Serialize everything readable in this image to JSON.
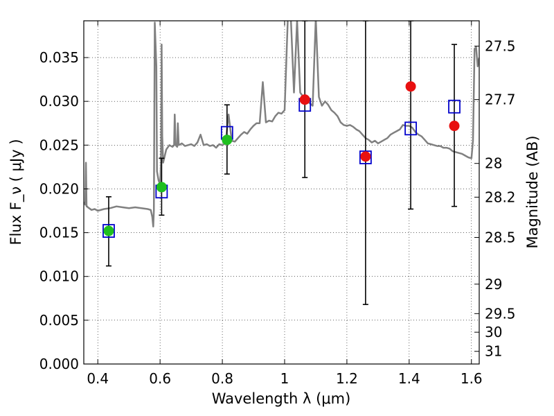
{
  "chart_data": {
    "type": "scatter",
    "xlabel": "Wavelength  λ (μm)",
    "ylabel": "Flux  F_ν  ( μJy )",
    "ylabel_right": "Magnitude (AB)",
    "xlim": [
      0.355,
      1.625
    ],
    "ylim": [
      0.0,
      0.0392
    ],
    "x_ticks": [
      0.4,
      0.6,
      0.8,
      1.0,
      1.2,
      1.4,
      1.6
    ],
    "x_tick_labels": [
      "0.4",
      "0.6",
      "0.8",
      "1",
      "1.2",
      "1.4",
      "1.6"
    ],
    "y_ticks": [
      0.0,
      0.005,
      0.01,
      0.015,
      0.02,
      0.025,
      0.03,
      0.035
    ],
    "y_tick_labels": [
      "0.000",
      "0.005",
      "0.010",
      "0.015",
      "0.020",
      "0.025",
      "0.030",
      "0.035"
    ],
    "right_ticks": [
      {
        "mag": 27.5,
        "label": "27.5"
      },
      {
        "mag": 27.7,
        "label": "27.7"
      },
      {
        "mag": 28.0,
        "label": "28"
      },
      {
        "mag": 28.2,
        "label": "28.2"
      },
      {
        "mag": 28.5,
        "label": "28.5"
      },
      {
        "mag": 29.0,
        "label": "29"
      },
      {
        "mag": 29.5,
        "label": "29.5"
      },
      {
        "mag": 30.0,
        "label": "30"
      },
      {
        "mag": 31.0,
        "label": "31"
      }
    ],
    "grid": true,
    "colors": {
      "model": "#808080",
      "model_photometry": "#0000cc",
      "detected": "#1fbf1f",
      "undetected": "#e81010",
      "errorbar": "#000000"
    },
    "series": [
      {
        "type": "line",
        "x": [
          0.355,
          0.36,
          0.362,
          0.364,
          0.366,
          0.368,
          0.372,
          0.38,
          0.39,
          0.4,
          0.42,
          0.44,
          0.46,
          0.48,
          0.5,
          0.52,
          0.54,
          0.56,
          0.57,
          0.575,
          0.578,
          0.58,
          0.583,
          0.585,
          0.588,
          0.59,
          0.595,
          0.6,
          0.603,
          0.605,
          0.607,
          0.61,
          0.62,
          0.63,
          0.64,
          0.645,
          0.647,
          0.65,
          0.655,
          0.657,
          0.66,
          0.67,
          0.68,
          0.69,
          0.7,
          0.71,
          0.72,
          0.73,
          0.74,
          0.75,
          0.76,
          0.77,
          0.78,
          0.79,
          0.8,
          0.81,
          0.82,
          0.83,
          0.84,
          0.85,
          0.86,
          0.87,
          0.88,
          0.89,
          0.9,
          0.91,
          0.92,
          0.93,
          0.94,
          0.95,
          0.96,
          0.97,
          0.98,
          0.99,
          1.0,
          1.01,
          1.02,
          1.03,
          1.04,
          1.05,
          1.06,
          1.07,
          1.08,
          1.09,
          1.1,
          1.11,
          1.12,
          1.13,
          1.14,
          1.15,
          1.16,
          1.17,
          1.18,
          1.19,
          1.2,
          1.21,
          1.22,
          1.23,
          1.24,
          1.25,
          1.26,
          1.27,
          1.28,
          1.29,
          1.3,
          1.31,
          1.32,
          1.33,
          1.34,
          1.35,
          1.36,
          1.37,
          1.38,
          1.39,
          1.4,
          1.41,
          1.42,
          1.43,
          1.44,
          1.45,
          1.46,
          1.47,
          1.48,
          1.49,
          1.5,
          1.51,
          1.52,
          1.53,
          1.54,
          1.55,
          1.56,
          1.57,
          1.58,
          1.59,
          1.6,
          1.605,
          1.61,
          1.615,
          1.62,
          1.625
        ],
        "y": [
          0.0185,
          0.0182,
          0.023,
          0.018,
          0.018,
          0.0179,
          0.0178,
          0.0176,
          0.0177,
          0.0175,
          0.0177,
          0.0178,
          0.018,
          0.0179,
          0.0178,
          0.0179,
          0.0178,
          0.0177,
          0.0176,
          0.0168,
          0.0157,
          0.0175,
          0.039,
          0.037,
          0.034,
          0.022,
          0.021,
          0.0205,
          0.023,
          0.0365,
          0.026,
          0.023,
          0.0245,
          0.025,
          0.0248,
          0.025,
          0.0285,
          0.025,
          0.0248,
          0.0275,
          0.025,
          0.0252,
          0.0249,
          0.025,
          0.0251,
          0.0249,
          0.0253,
          0.0262,
          0.025,
          0.0251,
          0.0249,
          0.025,
          0.0247,
          0.0251,
          0.025,
          0.0252,
          0.0285,
          0.0255,
          0.0254,
          0.0258,
          0.0262,
          0.0265,
          0.0263,
          0.0268,
          0.0272,
          0.0275,
          0.0275,
          0.0322,
          0.0276,
          0.0278,
          0.0277,
          0.0283,
          0.0287,
          0.0286,
          0.029,
          0.0392,
          0.0395,
          0.031,
          0.0392,
          0.031,
          0.0305,
          0.0302,
          0.0298,
          0.0295,
          0.0395,
          0.0305,
          0.0295,
          0.03,
          0.0296,
          0.029,
          0.0287,
          0.0283,
          0.0276,
          0.0273,
          0.0272,
          0.0273,
          0.0271,
          0.0268,
          0.0266,
          0.0262,
          0.0258,
          0.0256,
          0.0253,
          0.0255,
          0.0252,
          0.0254,
          0.0256,
          0.0258,
          0.0262,
          0.0264,
          0.0266,
          0.0268,
          0.0273,
          0.0272,
          0.0272,
          0.027,
          0.0265,
          0.0262,
          0.026,
          0.0256,
          0.0252,
          0.0251,
          0.025,
          0.0249,
          0.0249,
          0.0247,
          0.0247,
          0.0246,
          0.0243,
          0.0242,
          0.0241,
          0.024,
          0.0238,
          0.0236,
          0.0235,
          0.0255,
          0.036,
          0.0362,
          0.034,
          0.035
        ]
      },
      {
        "type": "scatter",
        "marker": "open-square",
        "x": [
          0.435,
          0.605,
          0.815,
          1.065,
          1.26,
          1.405,
          1.545
        ],
        "y": [
          0.0152,
          0.0197,
          0.0264,
          0.0296,
          0.0236,
          0.0269,
          0.0294
        ]
      },
      {
        "type": "scatter",
        "marker": "filled-circle",
        "x": [
          0.435,
          0.605,
          0.815
        ],
        "y": [
          0.0152,
          0.0202,
          0.0256
        ],
        "yerr_low": [
          0.0112,
          0.017,
          0.0217
        ],
        "yerr_high": [
          0.0191,
          0.0235,
          0.0296
        ]
      },
      {
        "type": "scatter",
        "marker": "filled-circle",
        "x": [
          1.065,
          1.26,
          1.405,
          1.545
        ],
        "y": [
          0.0302,
          0.0237,
          0.0317,
          0.0272
        ],
        "yerr_low": [
          0.0213,
          0.0068,
          0.0177,
          0.018
        ],
        "yerr_high": [
          0.0392,
          0.0392,
          0.0392,
          0.0365
        ]
      }
    ]
  }
}
